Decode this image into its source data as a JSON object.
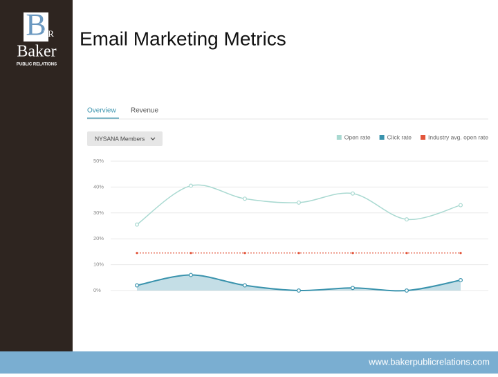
{
  "logo": {
    "letter": "B",
    "initials": "PR",
    "name": "Baker",
    "tagline": "PUBLIC RELATIONS"
  },
  "title": "Email Marketing Metrics",
  "footer": "www.bakerpublicrelations.com",
  "tabs": [
    "Overview",
    "Revenue"
  ],
  "filter": "NYSANA Members",
  "chart_data": {
    "type": "line",
    "categories": [
      null,
      null,
      null,
      null,
      null,
      null,
      null
    ],
    "series": [
      {
        "name": "Open rate",
        "color": "#a9d9d1",
        "values": [
          25.5,
          40.5,
          35.5,
          34,
          37.5,
          27.5,
          33
        ]
      },
      {
        "name": "Click rate",
        "color": "#3a93ad",
        "values": [
          2,
          6,
          2,
          0,
          1,
          0,
          4
        ],
        "area": true
      },
      {
        "name": "Industry avg. open rate",
        "color": "#e2553b",
        "values": [
          14.5,
          14.5,
          14.5,
          14.5,
          14.5,
          14.5,
          14.5
        ],
        "dashed": true
      }
    ],
    "ylim": [
      0,
      50
    ],
    "yticks": [
      {
        "value": 0,
        "label": "0%"
      },
      {
        "value": 10,
        "label": "10%"
      },
      {
        "value": 20,
        "label": "20%"
      },
      {
        "value": 30,
        "label": "30%"
      },
      {
        "value": 40,
        "label": "40%"
      },
      {
        "value": 50,
        "label": "50%"
      }
    ],
    "grid": true,
    "legend": "top-right"
  }
}
